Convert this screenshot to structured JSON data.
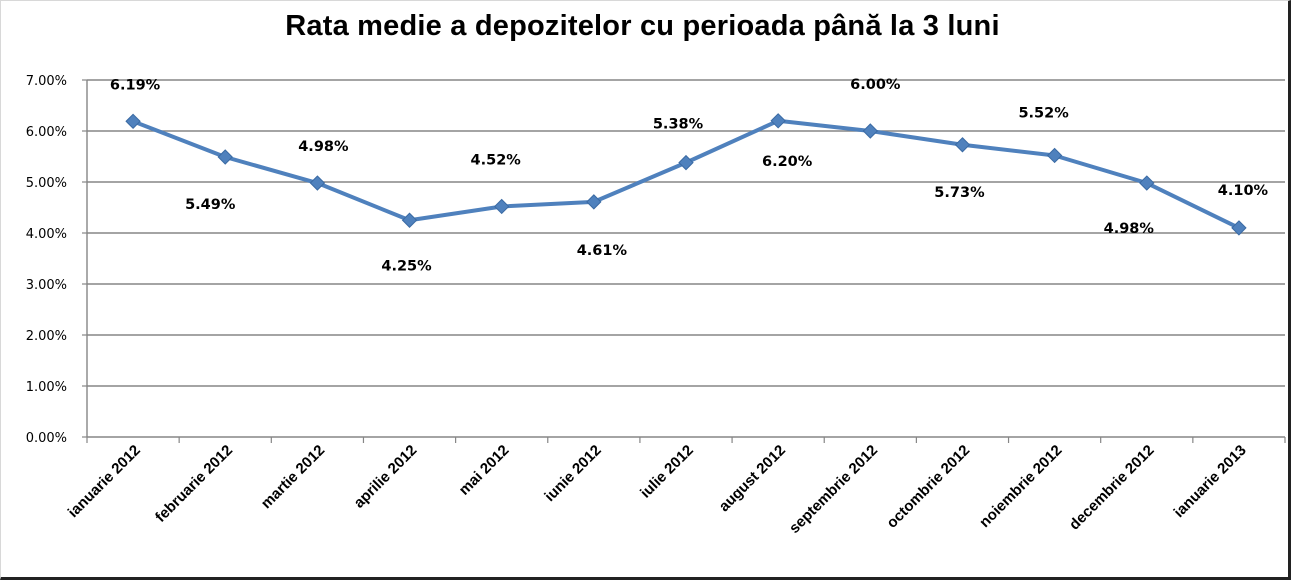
{
  "chart_data": {
    "type": "line",
    "title": "Rata medie a depozitelor cu perioada până la 3 luni",
    "xlabel": "",
    "ylabel": "",
    "categories": [
      "ianuarie 2012",
      "februarie 2012",
      "martie 2012",
      "aprilie 2012",
      "mai 2012",
      "iunie 2012",
      "iulie 2012",
      "august 2012",
      "septembrie 2012",
      "octombrie 2012",
      "noiembrie 2012",
      "decembrie 2012",
      "ianuarie 2013"
    ],
    "series": [
      {
        "values": [
          6.19,
          5.49,
          4.98,
          4.25,
          4.52,
          4.61,
          5.38,
          6.2,
          6.0,
          5.73,
          5.52,
          4.98,
          4.1
        ],
        "color": "#4f81bd"
      }
    ],
    "data_labels": [
      "6.19%",
      "5.49%",
      "4.98%",
      "4.25%",
      "4.52%",
      "4.61%",
      "5.38%",
      "6.20%",
      "6.00%",
      "5.73%",
      "5.52%",
      "4.98%",
      "4.10%"
    ],
    "ylim": [
      0,
      7
    ],
    "y_ticks": [
      "0.00%",
      "1.00%",
      "2.00%",
      "3.00%",
      "4.00%",
      "5.00%",
      "6.00%",
      "7.00%"
    ],
    "grid": true,
    "legend": "none",
    "marker": "diamond",
    "gridline_color": "#868686"
  }
}
